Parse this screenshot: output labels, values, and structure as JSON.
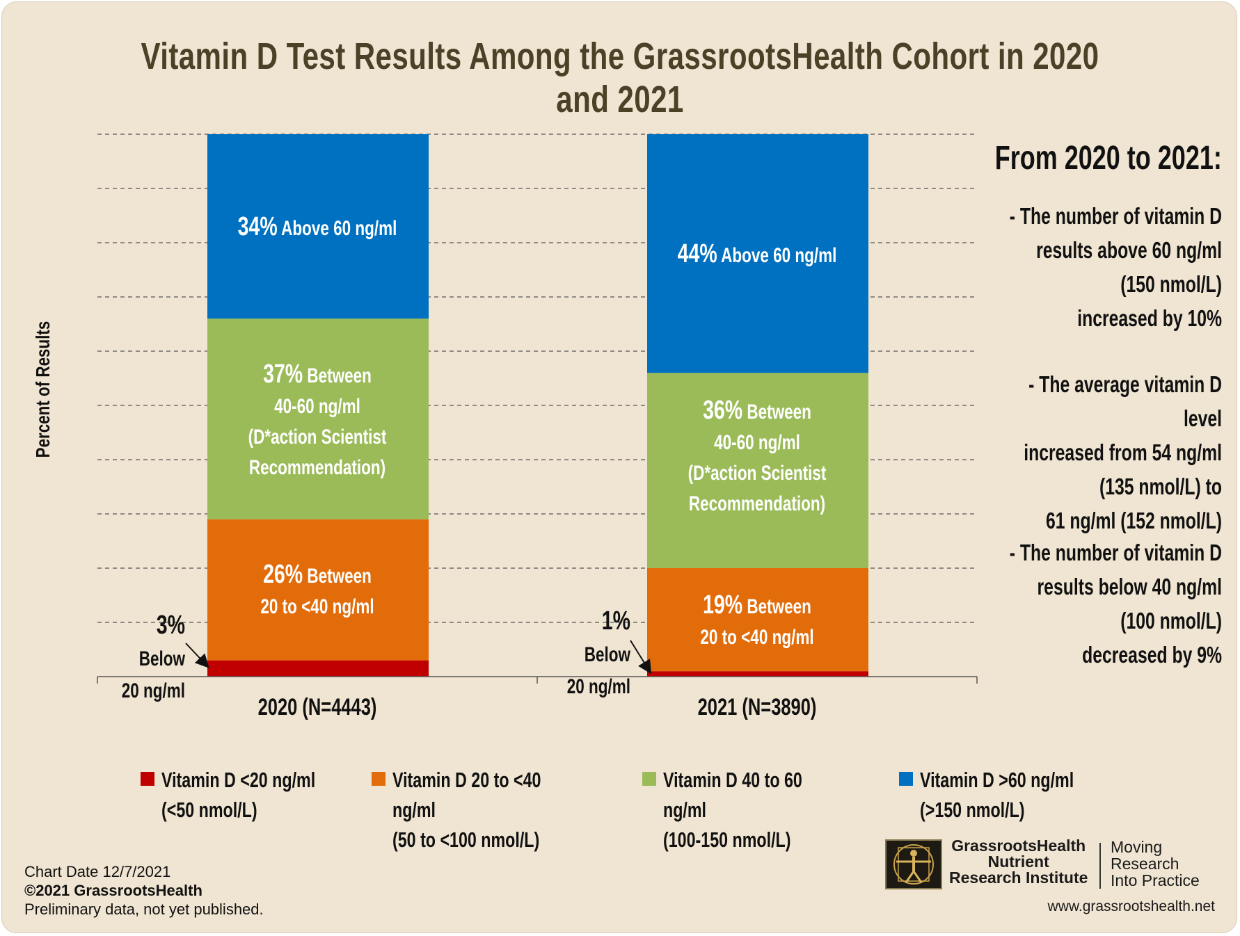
{
  "chart_data": {
    "type": "bar",
    "stacked": true,
    "title": "Vitamin D Test Results Among the GrassrootsHealth Cohort in 2020 and 2021",
    "ylabel": "Percent of Results",
    "xlabel": "",
    "ylim": [
      0,
      100
    ],
    "grid": true,
    "categories": [
      "2020 (N=4443)",
      "2021 (N=3890)"
    ],
    "series": [
      {
        "name": "Vitamin D <20 ng/ml (<50 nmol/L)",
        "color": "#c00000",
        "values": [
          3,
          1
        ]
      },
      {
        "name": "Vitamin D 20 to <40 ng/ml (50 to <100 nmol/L)",
        "color": "#e36c0a",
        "values": [
          26,
          19
        ]
      },
      {
        "name": "Vitamin D 40 to 60 ng/ml (100-150 nmol/L)",
        "color": "#9bbb59",
        "values": [
          37,
          36
        ]
      },
      {
        "name": "Vitamin D >60 ng/ml (>150 nmol/L)",
        "color": "#0070c0",
        "values": [
          34,
          44
        ]
      }
    ],
    "annotations": {
      "2020": {
        "above": {
          "pct": "34%",
          "text": "Above 60 ng/ml"
        },
        "between40": {
          "pct": "37%",
          "line1": "Between",
          "line2": "40-60 ng/ml",
          "line3": "(D*action Scientist",
          "line4": "Recommendation)"
        },
        "between20": {
          "pct": "26%",
          "line1": "Between",
          "line2": "20 to <40 ng/ml"
        },
        "below": {
          "pct": "3%",
          "line1": "Below",
          "line2": "20 ng/ml"
        }
      },
      "2021": {
        "above": {
          "pct": "44%",
          "text": "Above 60 ng/ml"
        },
        "between40": {
          "pct": "36%",
          "line1": "Between",
          "line2": "40-60 ng/ml",
          "line3": "(D*action Scientist",
          "line4": "Recommendation)"
        },
        "between20": {
          "pct": "19%",
          "line1": "Between",
          "line2": "20 to <40 ng/ml"
        },
        "below": {
          "pct": "1%",
          "line1": "Below",
          "line2": "20 ng/ml"
        }
      }
    },
    "legend": [
      {
        "color": "#c00000",
        "text": "Vitamin D <20 ng/ml\n(<50 nmol/L)"
      },
      {
        "color": "#e36c0a",
        "text": "Vitamin D 20 to <40 ng/ml\n(50 to <100 nmol/L)"
      },
      {
        "color": "#9bbb59",
        "text": "Vitamin D 40 to 60 ng/ml\n(100-150 nmol/L)"
      },
      {
        "color": "#0070c0",
        "text": "Vitamin D >60 ng/ml\n(>150 nmol/L)"
      }
    ],
    "legend_position": "bottom"
  },
  "sidebar": {
    "heading": "From 2020 to 2021:",
    "points": [
      "- The number of vitamin D\nresults above 60 ng/ml\n(150 nmol/L)\nincreased by 10%",
      "- The average vitamin D level\nincreased from 54 ng/ml\n(135 nmol/L) to\n61 ng/ml (152 nmol/L)",
      "- The number of vitamin D\nresults below 40 ng/ml\n(100 nmol/L)\ndecreased by 9%"
    ]
  },
  "footer": {
    "chart_date": "Chart Date 12/7/2021",
    "copyright": "©2021 GrassrootsHealth",
    "note": "Preliminary data, not yet published."
  },
  "logo": {
    "name": "GrassrootsHealth\nNutrient\nResearch Institute",
    "tagline": "Moving\nResearch\nInto Practice",
    "url": "www.grassrootshealth.net"
  },
  "colors": {
    "background": "#f0e5d2",
    "title": "#4a4127"
  }
}
